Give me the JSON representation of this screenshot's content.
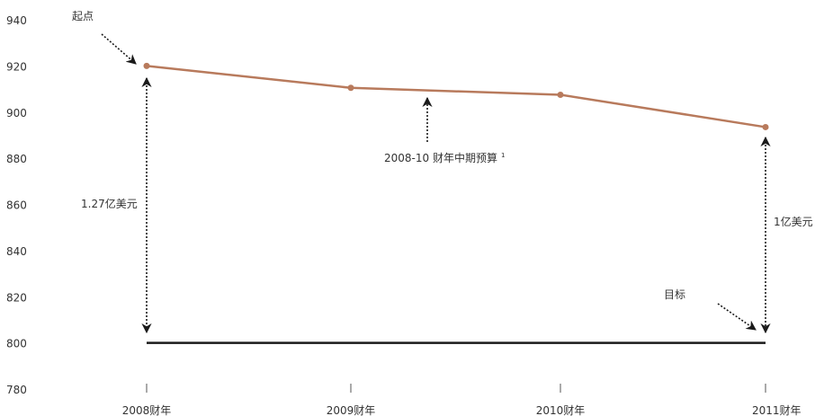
{
  "chart_data": {
    "type": "line",
    "categories": [
      "2008财年",
      "2009财年",
      "2010财年",
      "2011财年"
    ],
    "series": [
      {
        "values": [
          920,
          910.5,
          907.5,
          893.5
        ]
      }
    ],
    "target_line": {
      "value": 800,
      "from": "2008财年",
      "to": "2011财年"
    },
    "ylim": [
      780,
      940
    ],
    "yticks": [
      940,
      920,
      900,
      880,
      860,
      840,
      820,
      800,
      780
    ],
    "grid": false,
    "annotations": {
      "start": "起点",
      "target": "目标",
      "budget": "2008-10 财年中期预算",
      "budget_sup": "1",
      "gap_left": "1.27亿美元",
      "gap_right": "1亿美元"
    },
    "colors": {
      "series": "#b87a5c",
      "target": "#1a1a1a",
      "arrows": "#1a1a1a",
      "text": "#333333"
    }
  }
}
